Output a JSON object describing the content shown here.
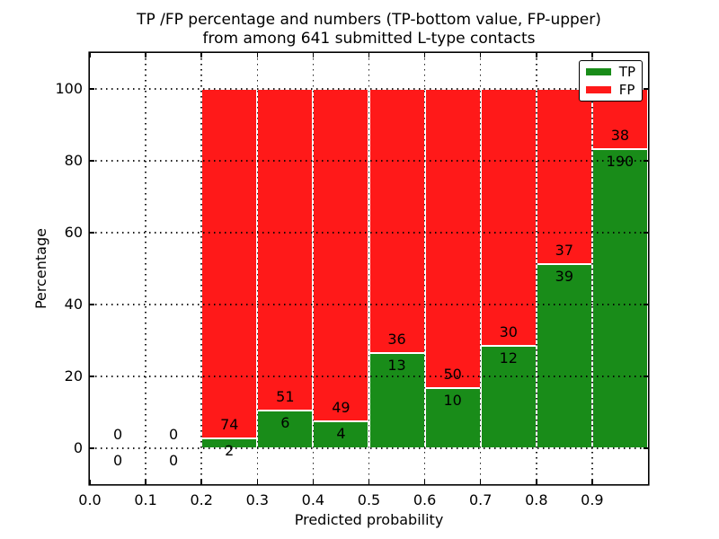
{
  "chart": {
    "title_line1": "TP /FP percentage and numbers (TP-bottom value, FP-upper)",
    "title_line2": "from among 641 submitted L-type contacts",
    "xlabel": "Predicted probability",
    "ylabel": "Percentage"
  },
  "chart_data": {
    "type": "bar",
    "stacked": true,
    "normalized": "each bar totals 100%",
    "title": "TP /FP percentage and numbers (TP-bottom value, FP-upper) from among 641 submitted L-type contacts",
    "xlabel": "Predicted probability",
    "ylabel": "Percentage",
    "xlim": [
      0.0,
      1.0
    ],
    "ylim": [
      -10,
      110
    ],
    "x_tick_values": [
      0.0,
      0.1,
      0.2,
      0.3,
      0.4,
      0.5,
      0.6,
      0.7,
      0.8,
      0.9
    ],
    "x_tick_labels": [
      "0.0",
      "0.1",
      "0.2",
      "0.3",
      "0.4",
      "0.5",
      "0.6",
      "0.7",
      "0.8",
      "0.9"
    ],
    "x_grid_values": [
      0.1,
      0.2,
      0.3,
      0.4,
      0.5,
      0.6,
      0.7,
      0.8,
      0.9
    ],
    "y_tick_values": [
      0,
      20,
      40,
      60,
      80,
      100
    ],
    "y_tick_labels": [
      "0",
      "20",
      "40",
      "60",
      "80",
      "100"
    ],
    "grid_style": "dotted",
    "grid_color": "#000000",
    "bar_edge_color": "#ffffff",
    "legend_position": "upper right",
    "series": [
      {
        "name": "TP",
        "color": "#198c19"
      },
      {
        "name": "FP",
        "color": "#ff1919"
      }
    ],
    "categories": [
      "0.0-0.1",
      "0.1-0.2",
      "0.2-0.3",
      "0.3-0.4",
      "0.4-0.5",
      "0.5-0.6",
      "0.6-0.7",
      "0.7-0.8",
      "0.8-0.9",
      "0.9-1.0"
    ],
    "bins": [
      {
        "x0": 0.0,
        "x1": 0.1,
        "tp": 0,
        "fp": 0
      },
      {
        "x0": 0.1,
        "x1": 0.2,
        "tp": 0,
        "fp": 0
      },
      {
        "x0": 0.2,
        "x1": 0.3,
        "tp": 2,
        "fp": 74
      },
      {
        "x0": 0.3,
        "x1": 0.4,
        "tp": 6,
        "fp": 51
      },
      {
        "x0": 0.4,
        "x1": 0.5,
        "tp": 4,
        "fp": 49
      },
      {
        "x0": 0.5,
        "x1": 0.6,
        "tp": 13,
        "fp": 36
      },
      {
        "x0": 0.6,
        "x1": 0.7,
        "tp": 10,
        "fp": 50
      },
      {
        "x0": 0.7,
        "x1": 0.8,
        "tp": 12,
        "fp": 30
      },
      {
        "x0": 0.8,
        "x1": 0.9,
        "tp": 39,
        "fp": 37
      },
      {
        "x0": 0.9,
        "x1": 1.0,
        "tp": 190,
        "fp": 38
      }
    ],
    "total_contacts": 641
  }
}
